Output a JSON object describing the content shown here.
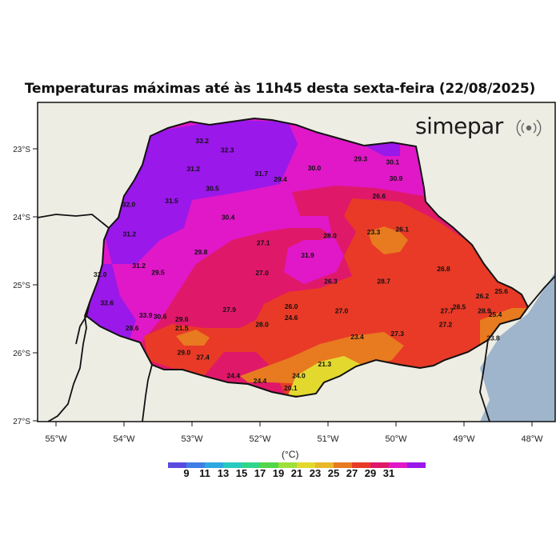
{
  "title": "Temperaturas máximas até às 11h45 desta sexta-feira (22/08/2025)",
  "logo": {
    "text": "simepar",
    "icon": "radio-waves-icon"
  },
  "map": {
    "lat_ticks": [
      "23°S",
      "24°S",
      "25°S",
      "26°S",
      "27°S"
    ],
    "lon_ticks": [
      "55°W",
      "54°W",
      "53°W",
      "52°W",
      "51°W",
      "50°W",
      "49°W",
      "48°W"
    ],
    "colors": {
      "land": "#eeede4",
      "ocean": "#9fb5cc",
      "border": "#111111"
    }
  },
  "stations": [
    {
      "label": "33.2",
      "lon": -52.85,
      "lat": -22.92
    },
    {
      "label": "32.3",
      "lon": -52.48,
      "lat": -23.05
    },
    {
      "label": "31.2",
      "lon": -52.98,
      "lat": -23.33
    },
    {
      "label": "31.7",
      "lon": -51.98,
      "lat": -23.4
    },
    {
      "label": "29.4",
      "lon": -51.7,
      "lat": -23.48
    },
    {
      "label": "30.0",
      "lon": -51.2,
      "lat": -23.32
    },
    {
      "label": "29.3",
      "lon": -50.52,
      "lat": -23.18
    },
    {
      "label": "30.1",
      "lon": -50.05,
      "lat": -23.23
    },
    {
      "label": "30.9",
      "lon": -50.0,
      "lat": -23.47
    },
    {
      "label": "30.5",
      "lon": -52.7,
      "lat": -23.62
    },
    {
      "label": "32.0",
      "lon": -53.93,
      "lat": -23.85
    },
    {
      "label": "31.5",
      "lon": -53.3,
      "lat": -23.8
    },
    {
      "label": "26.6",
      "lon": -50.25,
      "lat": -23.73
    },
    {
      "label": "30.4",
      "lon": -52.47,
      "lat": -24.04
    },
    {
      "label": "31.2",
      "lon": -53.92,
      "lat": -24.29
    },
    {
      "label": "28.0",
      "lon": -50.97,
      "lat": -24.31
    },
    {
      "label": "23.3",
      "lon": -50.33,
      "lat": -24.26
    },
    {
      "label": "26.1",
      "lon": -49.91,
      "lat": -24.22
    },
    {
      "label": "27.1",
      "lon": -51.95,
      "lat": -24.42
    },
    {
      "label": "29.8",
      "lon": -52.87,
      "lat": -24.55
    },
    {
      "label": "31.9",
      "lon": -51.3,
      "lat": -24.6
    },
    {
      "label": "31.2",
      "lon": -53.78,
      "lat": -24.75
    },
    {
      "label": "29.5",
      "lon": -53.5,
      "lat": -24.85
    },
    {
      "label": "32.0",
      "lon": -54.35,
      "lat": -24.88
    },
    {
      "label": "27.0",
      "lon": -51.97,
      "lat": -24.86
    },
    {
      "label": "26.8",
      "lon": -49.3,
      "lat": -24.8
    },
    {
      "label": "26.3",
      "lon": -50.96,
      "lat": -24.98
    },
    {
      "label": "28.7",
      "lon": -50.18,
      "lat": -24.98
    },
    {
      "label": "26.2",
      "lon": -48.73,
      "lat": -25.2
    },
    {
      "label": "25.6",
      "lon": -48.45,
      "lat": -25.13
    },
    {
      "label": "32.6",
      "lon": -54.25,
      "lat": -25.3
    },
    {
      "label": "26.0",
      "lon": -51.54,
      "lat": -25.35
    },
    {
      "label": "28.5",
      "lon": -49.07,
      "lat": -25.36
    },
    {
      "label": "27.9",
      "lon": -52.45,
      "lat": -25.4
    },
    {
      "label": "27.0",
      "lon": -50.8,
      "lat": -25.42
    },
    {
      "label": "27.7",
      "lon": -49.25,
      "lat": -25.42
    },
    {
      "label": "28.9",
      "lon": -48.7,
      "lat": -25.42
    },
    {
      "label": "25.4",
      "lon": -48.54,
      "lat": -25.47
    },
    {
      "label": "33.9",
      "lon": -53.68,
      "lat": -25.48
    },
    {
      "label": "30.6",
      "lon": -53.47,
      "lat": -25.5
    },
    {
      "label": "24.6",
      "lon": -51.54,
      "lat": -25.52
    },
    {
      "label": "29.6",
      "lon": -53.15,
      "lat": -25.54
    },
    {
      "label": "28.0",
      "lon": -51.97,
      "lat": -25.62
    },
    {
      "label": "27.2",
      "lon": -49.27,
      "lat": -25.62
    },
    {
      "label": "28.6",
      "lon": -53.88,
      "lat": -25.67
    },
    {
      "label": "21.5",
      "lon": -53.15,
      "lat": -25.67
    },
    {
      "label": "27.3",
      "lon": -49.98,
      "lat": -25.75
    },
    {
      "label": "23.4",
      "lon": -50.57,
      "lat": -25.8
    },
    {
      "label": "23.8",
      "lon": -48.57,
      "lat": -25.82
    },
    {
      "label": "29.0",
      "lon": -53.12,
      "lat": -26.03
    },
    {
      "label": "27.4",
      "lon": -52.84,
      "lat": -26.1
    },
    {
      "label": "21.3",
      "lon": -51.05,
      "lat": -26.2
    },
    {
      "label": "24.0",
      "lon": -51.43,
      "lat": -26.37
    },
    {
      "label": "24.4",
      "lon": -52.39,
      "lat": -26.37
    },
    {
      "label": "24.4",
      "lon": -52.0,
      "lat": -26.45
    },
    {
      "label": "20.1",
      "lon": -51.55,
      "lat": -26.55
    }
  ],
  "legend": {
    "unit": "(°C)",
    "labels": [
      "9",
      "11",
      "13",
      "15",
      "17",
      "19",
      "21",
      "23",
      "25",
      "27",
      "29",
      "31"
    ],
    "colors": [
      "#5a4be0",
      "#3f7ee6",
      "#2ea8e0",
      "#28c9c0",
      "#2fd68a",
      "#52d64a",
      "#9ee03a",
      "#e3d92e",
      "#e8b82a",
      "#e87a20",
      "#e83a26",
      "#e0186a",
      "#e018c8",
      "#9a18ea"
    ]
  }
}
